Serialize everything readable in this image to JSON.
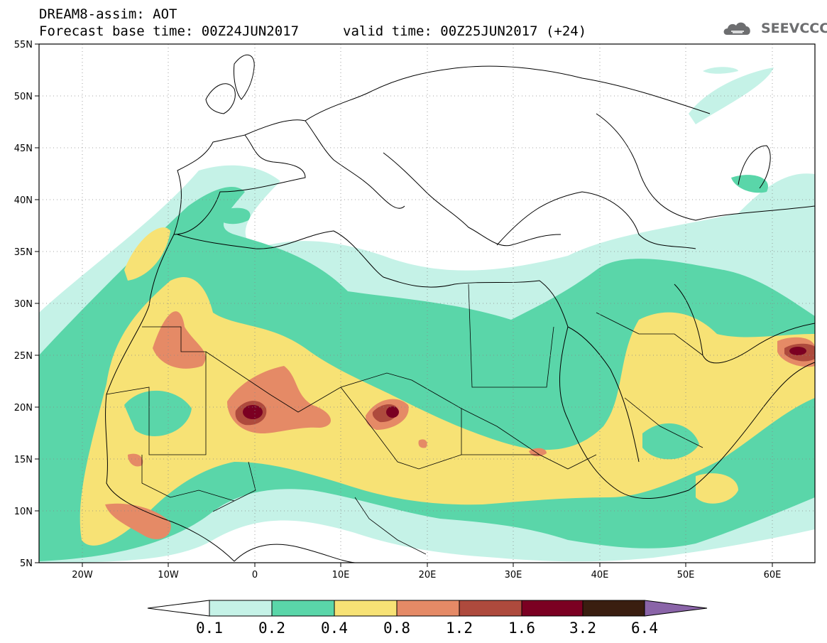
{
  "header": {
    "title": "DREAM8-assim: AOT",
    "base_time": "Forecast base time: 00Z24JUN2017",
    "valid_time": "valid time: 00Z25JUN2017 (+24)",
    "logo_text": "SEEVCCC"
  },
  "map": {
    "projection": "cylindrical",
    "lon_range": [
      -25,
      65
    ],
    "lat_range": [
      5,
      55
    ],
    "lat_labels": [
      "55N",
      "50N",
      "45N",
      "40N",
      "35N",
      "30N",
      "25N",
      "20N",
      "15N",
      "10N",
      "5N"
    ],
    "lon_labels": [
      "20W",
      "10W",
      "0",
      "10E",
      "20E",
      "30E",
      "40E",
      "50E",
      "60E"
    ],
    "grid": "dotted"
  },
  "colorbar": {
    "labels": [
      "0.1",
      "0.2",
      "0.4",
      "0.8",
      "1.2",
      "1.6",
      "3.2",
      "6.4"
    ],
    "colors": [
      "#ffffff",
      "#c5f2e7",
      "#5ad6a9",
      "#f7e275",
      "#e58a66",
      "#ae4a3d",
      "#7b0022",
      "#3a1e10",
      "#8a64a8"
    ]
  }
}
